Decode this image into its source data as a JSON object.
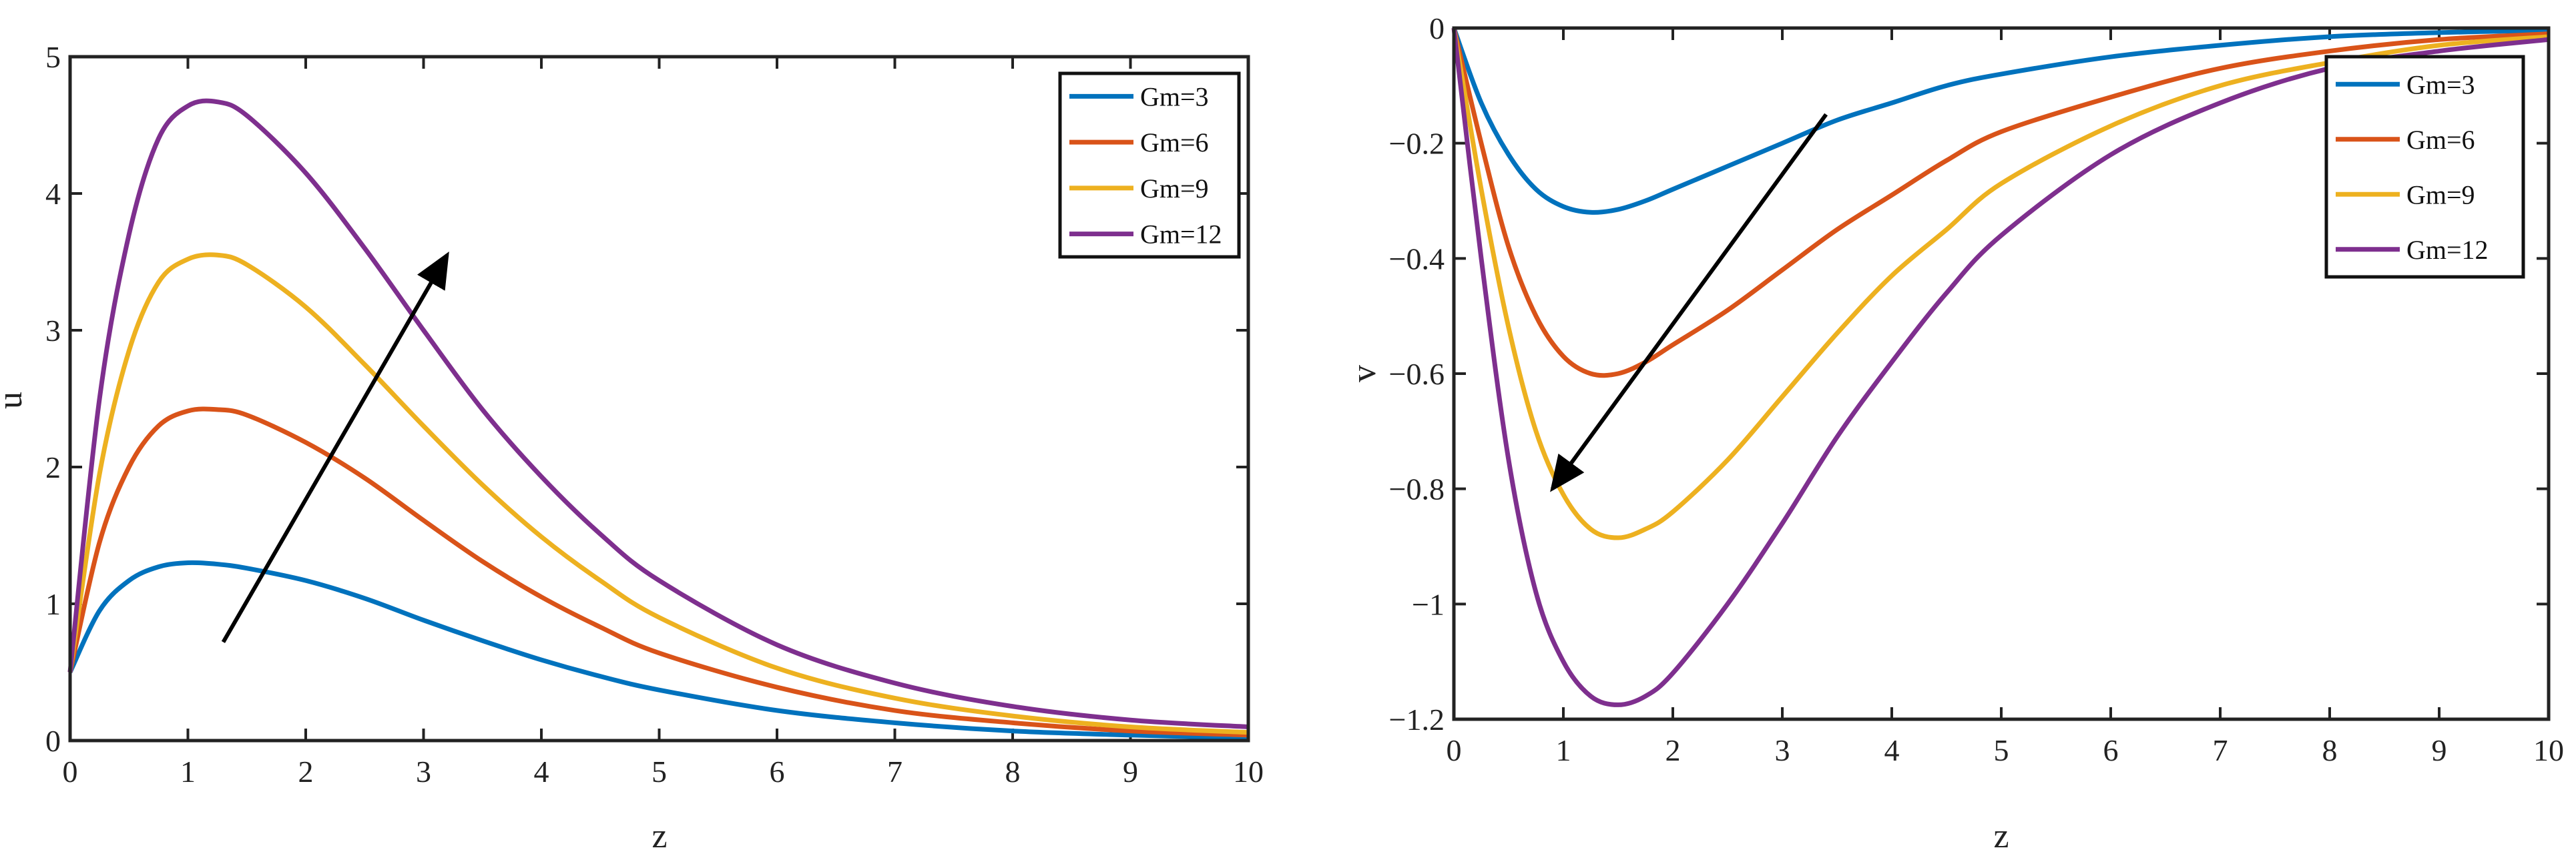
{
  "chart_data": [
    {
      "type": "line",
      "xlabel": "z",
      "ylabel": "u",
      "xlim": [
        0,
        10
      ],
      "ylim": [
        0,
        5
      ],
      "xticks": [
        "0",
        "1",
        "2",
        "3",
        "4",
        "5",
        "6",
        "7",
        "8",
        "9",
        "10"
      ],
      "yticks": [
        "0",
        "1",
        "2",
        "3",
        "4",
        "5"
      ],
      "legend_position": "top-right",
      "x": [
        0,
        0.25,
        0.5,
        0.75,
        1,
        1.25,
        1.5,
        2,
        2.5,
        3,
        3.5,
        4,
        4.5,
        5,
        6,
        7,
        8,
        9,
        10
      ],
      "series": [
        {
          "name": "Gm=3",
          "color": "#0072BD",
          "values": [
            0.5,
            0.95,
            1.17,
            1.27,
            1.3,
            1.29,
            1.26,
            1.17,
            1.04,
            0.88,
            0.73,
            0.59,
            0.47,
            0.37,
            0.22,
            0.13,
            0.07,
            0.04,
            0.02
          ]
        },
        {
          "name": "Gm=6",
          "color": "#D95319",
          "values": [
            0.5,
            1.45,
            2.0,
            2.3,
            2.41,
            2.42,
            2.38,
            2.18,
            1.92,
            1.61,
            1.31,
            1.05,
            0.83,
            0.64,
            0.39,
            0.22,
            0.13,
            0.07,
            0.04
          ]
        },
        {
          "name": "Gm=9",
          "color": "#EDB120",
          "values": [
            0.5,
            1.95,
            2.85,
            3.35,
            3.52,
            3.55,
            3.48,
            3.17,
            2.75,
            2.3,
            1.87,
            1.49,
            1.17,
            0.9,
            0.53,
            0.31,
            0.18,
            0.1,
            0.06
          ]
        },
        {
          "name": "Gm=12",
          "color": "#7E2F8E",
          "values": [
            0.5,
            2.5,
            3.7,
            4.4,
            4.64,
            4.67,
            4.57,
            4.15,
            3.6,
            3.0,
            2.42,
            1.93,
            1.51,
            1.17,
            0.7,
            0.42,
            0.25,
            0.15,
            0.1
          ]
        }
      ],
      "arrow": {
        "from": [
          1.3,
          0.72
        ],
        "to": [
          3.2,
          3.55
        ]
      }
    },
    {
      "type": "line",
      "xlabel": "z",
      "ylabel": "v",
      "xlim": [
        0,
        10
      ],
      "ylim": [
        -1.2,
        0
      ],
      "xticks": [
        "0",
        "1",
        "2",
        "3",
        "4",
        "5",
        "6",
        "7",
        "8",
        "9",
        "10"
      ],
      "yticks": [
        "0",
        "−0.2",
        "−0.4",
        "−0.6",
        "−0.8",
        "−1",
        "−1.2"
      ],
      "legend_position": "top-right",
      "x": [
        0,
        0.25,
        0.5,
        0.75,
        1,
        1.25,
        1.5,
        1.75,
        2,
        2.5,
        3,
        3.5,
        4,
        4.5,
        5,
        6,
        7,
        8,
        9,
        10
      ],
      "series": [
        {
          "name": "Gm=3",
          "color": "#0072BD",
          "values": [
            0,
            -0.13,
            -0.22,
            -0.28,
            -0.31,
            -0.32,
            -0.315,
            -0.3,
            -0.28,
            -0.24,
            -0.2,
            -0.16,
            -0.13,
            -0.1,
            -0.08,
            -0.05,
            -0.03,
            -0.015,
            -0.008,
            -0.004
          ]
        },
        {
          "name": "Gm=6",
          "color": "#D95319",
          "values": [
            0,
            -0.2,
            -0.38,
            -0.5,
            -0.57,
            -0.6,
            -0.6,
            -0.58,
            -0.55,
            -0.49,
            -0.42,
            -0.35,
            -0.29,
            -0.23,
            -0.18,
            -0.12,
            -0.07,
            -0.04,
            -0.02,
            -0.01
          ]
        },
        {
          "name": "Gm=9",
          "color": "#EDB120",
          "values": [
            0,
            -0.28,
            -0.52,
            -0.7,
            -0.81,
            -0.87,
            -0.885,
            -0.87,
            -0.84,
            -0.75,
            -0.64,
            -0.53,
            -0.43,
            -0.35,
            -0.27,
            -0.17,
            -0.1,
            -0.06,
            -0.03,
            -0.015
          ]
        },
        {
          "name": "Gm=12",
          "color": "#7E2F8E",
          "values": [
            0,
            -0.4,
            -0.75,
            -0.98,
            -1.1,
            -1.16,
            -1.175,
            -1.16,
            -1.12,
            -1.0,
            -0.86,
            -0.71,
            -0.58,
            -0.46,
            -0.36,
            -0.22,
            -0.13,
            -0.07,
            -0.04,
            -0.02
          ]
        }
      ],
      "arrow": {
        "from": [
          3.4,
          -0.15
        ],
        "to": [
          0.9,
          -0.8
        ]
      }
    }
  ]
}
